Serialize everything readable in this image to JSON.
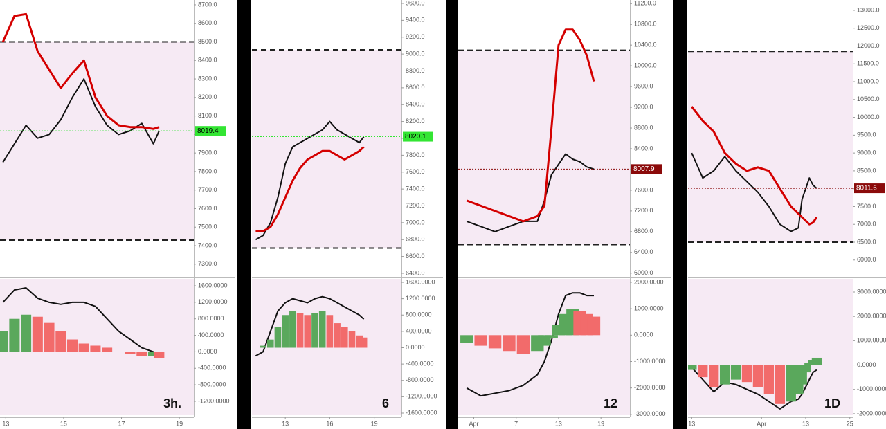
{
  "chart_data": [
    {
      "type": "line",
      "label": "3h.",
      "last_price": 8019.4,
      "last_price_color": "#33e533",
      "last_price_text_color": "#000000",
      "x": [
        12.9,
        13.3,
        13.7,
        14.1,
        14.5,
        14.9,
        15.3,
        15.7,
        16.1,
        16.5,
        16.9,
        17.3,
        17.7,
        18.1,
        18.3
      ],
      "xlim": [
        12.8,
        19.5
      ],
      "xticks": [
        13,
        15,
        17,
        19
      ],
      "ylim": [
        7232,
        8726
      ],
      "yticks": [
        {
          "value": 7300,
          "label": "7300.0"
        },
        {
          "value": 7400,
          "label": "7400.0"
        },
        {
          "value": 7500,
          "label": "7500.0"
        },
        {
          "value": 7600,
          "label": "7600.0"
        },
        {
          "value": 7700,
          "label": "7700.0"
        },
        {
          "value": 7800,
          "label": "7800.0"
        },
        {
          "value": 7900,
          "label": "7900.0"
        },
        {
          "value": 8000,
          "label": "8000.0"
        },
        {
          "value": 8100,
          "label": "8100.0"
        },
        {
          "value": 8200,
          "label": "8200.0"
        },
        {
          "value": 8300,
          "label": "8300.0"
        },
        {
          "value": 8400,
          "label": "8400.0"
        },
        {
          "value": 8500,
          "label": "8500.0"
        },
        {
          "value": 8600,
          "label": "8600.0"
        },
        {
          "value": 8700,
          "label": "8700.0"
        }
      ],
      "y2lim": [
        -1536,
        1768
      ],
      "y2ticks": [
        {
          "value": 1600,
          "label": "1600.0000"
        },
        {
          "value": 1200,
          "label": "1200.0000"
        },
        {
          "value": 800,
          "label": "800.0000"
        },
        {
          "value": 400,
          "label": "400.0000"
        },
        {
          "value": 0,
          "label": "0.0000"
        },
        {
          "value": -400,
          "label": "-400.0000"
        },
        {
          "value": -800,
          "label": "-800.0000"
        },
        {
          "value": -1200,
          "label": "-1200.0000"
        }
      ],
      "levels": [
        8500,
        7430
      ],
      "series": [
        {
          "color": "#111111",
          "values": [
            7850,
            7950,
            8050,
            7980,
            8000,
            8080,
            8200,
            8300,
            8150,
            8050,
            8000,
            8020,
            8060,
            7950,
            8019.4
          ]
        },
        {
          "color": "#d40000",
          "values": [
            8500,
            8640,
            8650,
            8450,
            8350,
            8250,
            8330,
            8400,
            8200,
            8100,
            8050,
            8040,
            8040,
            8030,
            8040
          ]
        },
        {
          "color": "#111111",
          "axis": "y2",
          "values": [
            1200,
            1500,
            1550,
            1300,
            1200,
            1150,
            1200,
            1200,
            1100,
            800,
            500,
            300,
            100,
            0,
            -100
          ]
        },
        {
          "type": "bar",
          "axis": "y2",
          "color": "#5aa85c",
          "down_color": "#f26b6b",
          "values": [
            500,
            800,
            900,
            850,
            700,
            500,
            300,
            200,
            150,
            100,
            0,
            -50,
            -100,
            -100,
            -150
          ]
        }
      ]
    },
    {
      "type": "line",
      "label": "6",
      "last_price": 8020.1,
      "last_price_color": "#33e533",
      "last_price_text_color": "#000000",
      "x": [
        11,
        11.5,
        12,
        12.5,
        13,
        13.5,
        14,
        14.5,
        15,
        15.5,
        16,
        16.5,
        17,
        17.5,
        18,
        18.3
      ],
      "xlim": [
        10.75,
        20.84
      ],
      "xticks": [
        13,
        16,
        19
      ],
      "ylim": [
        6359,
        9641
      ],
      "yticks": [
        {
          "value": 6400,
          "label": "6400.0"
        },
        {
          "value": 6600,
          "label": "6600.0"
        },
        {
          "value": 6800,
          "label": "6800.0"
        },
        {
          "value": 7000,
          "label": "7000.0"
        },
        {
          "value": 7200,
          "label": "7200.0"
        },
        {
          "value": 7400,
          "label": "7400.0"
        },
        {
          "value": 7600,
          "label": "7600.0"
        },
        {
          "value": 7800,
          "label": "7800.0"
        },
        {
          "value": 8000,
          "label": "8000.0"
        },
        {
          "value": 8200,
          "label": "8200.0"
        },
        {
          "value": 8400,
          "label": "8400.0"
        },
        {
          "value": 8600,
          "label": "8600.0"
        },
        {
          "value": 8800,
          "label": "8800.0"
        },
        {
          "value": 9000,
          "label": "9000.0"
        },
        {
          "value": 9200,
          "label": "9200.0"
        },
        {
          "value": 9400,
          "label": "9400.0"
        },
        {
          "value": 9600,
          "label": "9600.0"
        }
      ],
      "y2lim": [
        -1651,
        1685
      ],
      "y2ticks": [
        {
          "value": 1600,
          "label": "1600.0000"
        },
        {
          "value": 1200,
          "label": "1200.0000"
        },
        {
          "value": 800,
          "label": "800.0000"
        },
        {
          "value": 400,
          "label": "400.0000"
        },
        {
          "value": 0,
          "label": "0.0000"
        },
        {
          "value": -400,
          "label": "-400.0000"
        },
        {
          "value": -800,
          "label": "-800.0000"
        },
        {
          "value": -1200,
          "label": "-1200.0000"
        },
        {
          "value": -1600,
          "label": "-1600.0000"
        }
      ],
      "levels": [
        9050,
        6700
      ],
      "series": [
        {
          "color": "#111111",
          "values": [
            6800,
            6850,
            7000,
            7300,
            7700,
            7900,
            7950,
            8000,
            8050,
            8100,
            8200,
            8100,
            8050,
            8000,
            7950,
            8020.1
          ]
        },
        {
          "color": "#d40000",
          "values": [
            6900,
            6900,
            6950,
            7100,
            7300,
            7500,
            7650,
            7750,
            7800,
            7850,
            7850,
            7800,
            7750,
            7800,
            7850,
            7900
          ]
        },
        {
          "color": "#111111",
          "axis": "y2",
          "values": [
            -200,
            -100,
            400,
            900,
            1100,
            1200,
            1150,
            1100,
            1200,
            1250,
            1200,
            1100,
            1000,
            900,
            800,
            700
          ]
        },
        {
          "type": "bar",
          "axis": "y2",
          "color": "#5aa85c",
          "down_color": "#f26b6b",
          "values": [
            0,
            50,
            200,
            500,
            800,
            900,
            850,
            800,
            850,
            900,
            800,
            600,
            500,
            400,
            300,
            250
          ]
        }
      ]
    },
    {
      "type": "line",
      "label": "12",
      "last_price": 8007.9,
      "last_price_color": "#8b0a0a",
      "last_price_text_color": "#ffffff",
      "x": [
        0,
        2,
        4,
        6,
        8,
        10,
        11,
        12,
        13,
        14,
        15,
        16,
        17,
        18
      ],
      "xlim": [
        -1.2,
        23.1
      ],
      "xticks": [
        {
          "value": 1,
          "label": "Apr"
        },
        7,
        13,
        19
      ],
      "ylim": [
        5930,
        11270
      ],
      "yticks": [
        {
          "value": 6000,
          "label": "6000.0"
        },
        {
          "value": 6400,
          "label": "6400.0"
        },
        {
          "value": 6800,
          "label": "6800.0"
        },
        {
          "value": 7200,
          "label": "7200.0"
        },
        {
          "value": 7600,
          "label": "7600.0"
        },
        {
          "value": 8000,
          "label": "8000.0"
        },
        {
          "value": 8400,
          "label": "8400.0"
        },
        {
          "value": 8800,
          "label": "8800.0"
        },
        {
          "value": 9200,
          "label": "9200.0"
        },
        {
          "value": 9600,
          "label": "9600.0"
        },
        {
          "value": 10000,
          "label": "10000.0"
        },
        {
          "value": 10400,
          "label": "10400.0"
        },
        {
          "value": 10800,
          "label": "10800.0"
        },
        {
          "value": 11200,
          "label": "11200.0"
        }
      ],
      "y2lim": [
        -3030,
        2130
      ],
      "y2ticks": [
        {
          "value": 2000,
          "label": "2000.0000"
        },
        {
          "value": 1000,
          "label": "1000.0000"
        },
        {
          "value": 0,
          "label": "0.0000"
        },
        {
          "value": -1000,
          "label": "-1000.0000"
        },
        {
          "value": -2000,
          "label": "-2000.0000"
        },
        {
          "value": -3000,
          "label": "-3000.0000"
        }
      ],
      "levels": [
        10300,
        6550
      ],
      "series": [
        {
          "color": "#111111",
          "values": [
            7000,
            6900,
            6800,
            6900,
            7000,
            7000,
            7400,
            7900,
            8100,
            8300,
            8200,
            8150,
            8050,
            8007.9
          ]
        },
        {
          "color": "#d40000",
          "values": [
            7400,
            7300,
            7200,
            7100,
            7000,
            7100,
            7300,
            8800,
            10400,
            10700,
            10700,
            10500,
            10200,
            9700
          ]
        },
        {
          "color": "#111111",
          "axis": "y2",
          "values": [
            -2000,
            -2300,
            -2200,
            -2100,
            -1900,
            -1500,
            -1000,
            -200,
            800,
            1500,
            1600,
            1600,
            1500,
            1500
          ]
        },
        {
          "type": "bar",
          "axis": "y2",
          "color": "#5aa85c",
          "down_color": "#f26b6b",
          "values": [
            -300,
            -400,
            -500,
            -600,
            -700,
            -600,
            -400,
            -100,
            400,
            800,
            1000,
            900,
            800,
            700
          ]
        }
      ]
    },
    {
      "type": "line",
      "label": "1D",
      "last_price": 8011.6,
      "last_price_color": "#8b0a0a",
      "last_price_text_color": "#ffffff",
      "x": [
        -19,
        -16,
        -13,
        -10,
        -7,
        -4,
        -1,
        2,
        5,
        8,
        10,
        11,
        12,
        13,
        14,
        15
      ],
      "xlim": [
        -20,
        24.8
      ],
      "xticks": [
        {
          "value": -19,
          "label": "13"
        },
        {
          "value": 0,
          "label": "Apr"
        },
        {
          "value": 12,
          "label": "13"
        },
        {
          "value": 24,
          "label": "25"
        }
      ],
      "ylim": [
        5530,
        13290
      ],
      "yticks": [
        {
          "value": 6000,
          "label": "6000.0"
        },
        {
          "value": 6500,
          "label": "6500.0"
        },
        {
          "value": 7000,
          "label": "7000.0"
        },
        {
          "value": 7500,
          "label": "7500.0"
        },
        {
          "value": 8000,
          "label": "8000.0"
        },
        {
          "value": 8500,
          "label": "8500.0"
        },
        {
          "value": 9000,
          "label": "9000.0"
        },
        {
          "value": 9500,
          "label": "9500.0"
        },
        {
          "value": 10000,
          "label": "10000.0"
        },
        {
          "value": 10500,
          "label": "10500.0"
        },
        {
          "value": 11000,
          "label": "11000.0"
        },
        {
          "value": 11500,
          "label": "11500.0"
        },
        {
          "value": 12000,
          "label": "12000.0"
        },
        {
          "value": 12500,
          "label": "12500.0"
        },
        {
          "value": 13000,
          "label": "13000.0"
        }
      ],
      "y2lim": [
        -2060,
        3540
      ],
      "y2ticks": [
        {
          "value": 3000,
          "label": "3000.0000"
        },
        {
          "value": 2000,
          "label": "2000.0000"
        },
        {
          "value": 1000,
          "label": "1000.0000"
        },
        {
          "value": 0,
          "label": "0.0000"
        },
        {
          "value": -1000,
          "label": "-1000.0000"
        },
        {
          "value": -2000,
          "label": "-2000.0000"
        }
      ],
      "levels": [
        11850,
        6500
      ],
      "series": [
        {
          "color": "#111111",
          "values": [
            9000,
            8300,
            8500,
            8900,
            8500,
            8200,
            7900,
            7500,
            7000,
            6800,
            6900,
            7700,
            8000,
            8300,
            8100,
            8011.6
          ]
        },
        {
          "color": "#d40000",
          "values": [
            10300,
            9900,
            9600,
            9000,
            8700,
            8500,
            8600,
            8500,
            8000,
            7500,
            7300,
            7200,
            7100,
            7000,
            7050,
            7200
          ]
        },
        {
          "color": "#111111",
          "axis": "y2",
          "values": [
            -100,
            -600,
            -1100,
            -700,
            -800,
            -1000,
            -1200,
            -1500,
            -1800,
            -1500,
            -1400,
            -1200,
            -900,
            -600,
            -300,
            -200
          ]
        },
        {
          "type": "bar",
          "axis": "y2",
          "color": "#5aa85c",
          "down_color": "#f26b6b",
          "values": [
            -200,
            -500,
            -900,
            -800,
            -600,
            -700,
            -900,
            -1200,
            -1600,
            -1500,
            -1200,
            -800,
            -300,
            100,
            200,
            300
          ]
        }
      ]
    }
  ]
}
